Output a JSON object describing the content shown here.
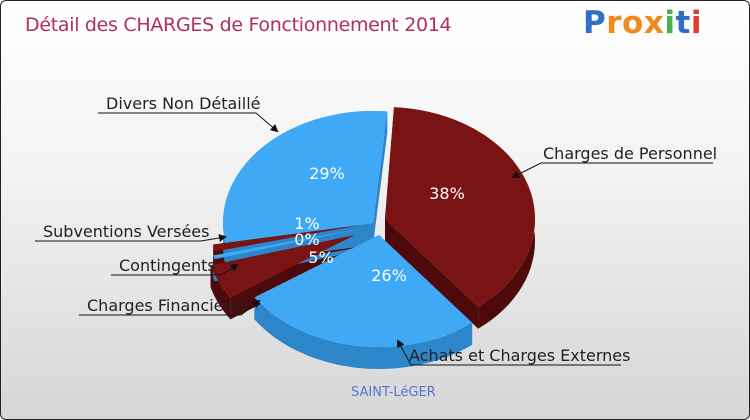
{
  "title": "Détail des CHARGES de Fonctionnement 2014",
  "logo": {
    "text": "Proxiti",
    "letters": [
      "P",
      "r",
      "o",
      "x",
      "i",
      "t",
      "i"
    ],
    "colors": [
      "#2f6fc6",
      "#f08a1c",
      "#f08a1c",
      "#f08a1c",
      "#4caf50",
      "#2f6fc6",
      "#e03c31"
    ]
  },
  "footer": "SAINT-LéGER",
  "colors": {
    "blue": "#3fa9f5",
    "blue_dark": "#2d86c9",
    "red": "#7a1414",
    "red_dark": "#4e0a0a"
  },
  "chart_data": {
    "type": "pie",
    "title": "Détail des CHARGES de Fonctionnement 2014",
    "slices": [
      {
        "name": "Charges de Personnel",
        "value": 38,
        "label": "38%",
        "color": "red"
      },
      {
        "name": "Achats et Charges Externes",
        "value": 26,
        "label": "26%",
        "color": "blue"
      },
      {
        "name": "Charges Financières",
        "value": 5,
        "label": "5%",
        "color": "red"
      },
      {
        "name": "Contingents",
        "value": 0,
        "label": "0%",
        "color": "blue"
      },
      {
        "name": "Subventions Versées",
        "value": 1,
        "label": "1%",
        "color": "red"
      },
      {
        "name": "Divers Non Détaillé",
        "value": 29,
        "label": "29%",
        "color": "blue"
      }
    ]
  }
}
